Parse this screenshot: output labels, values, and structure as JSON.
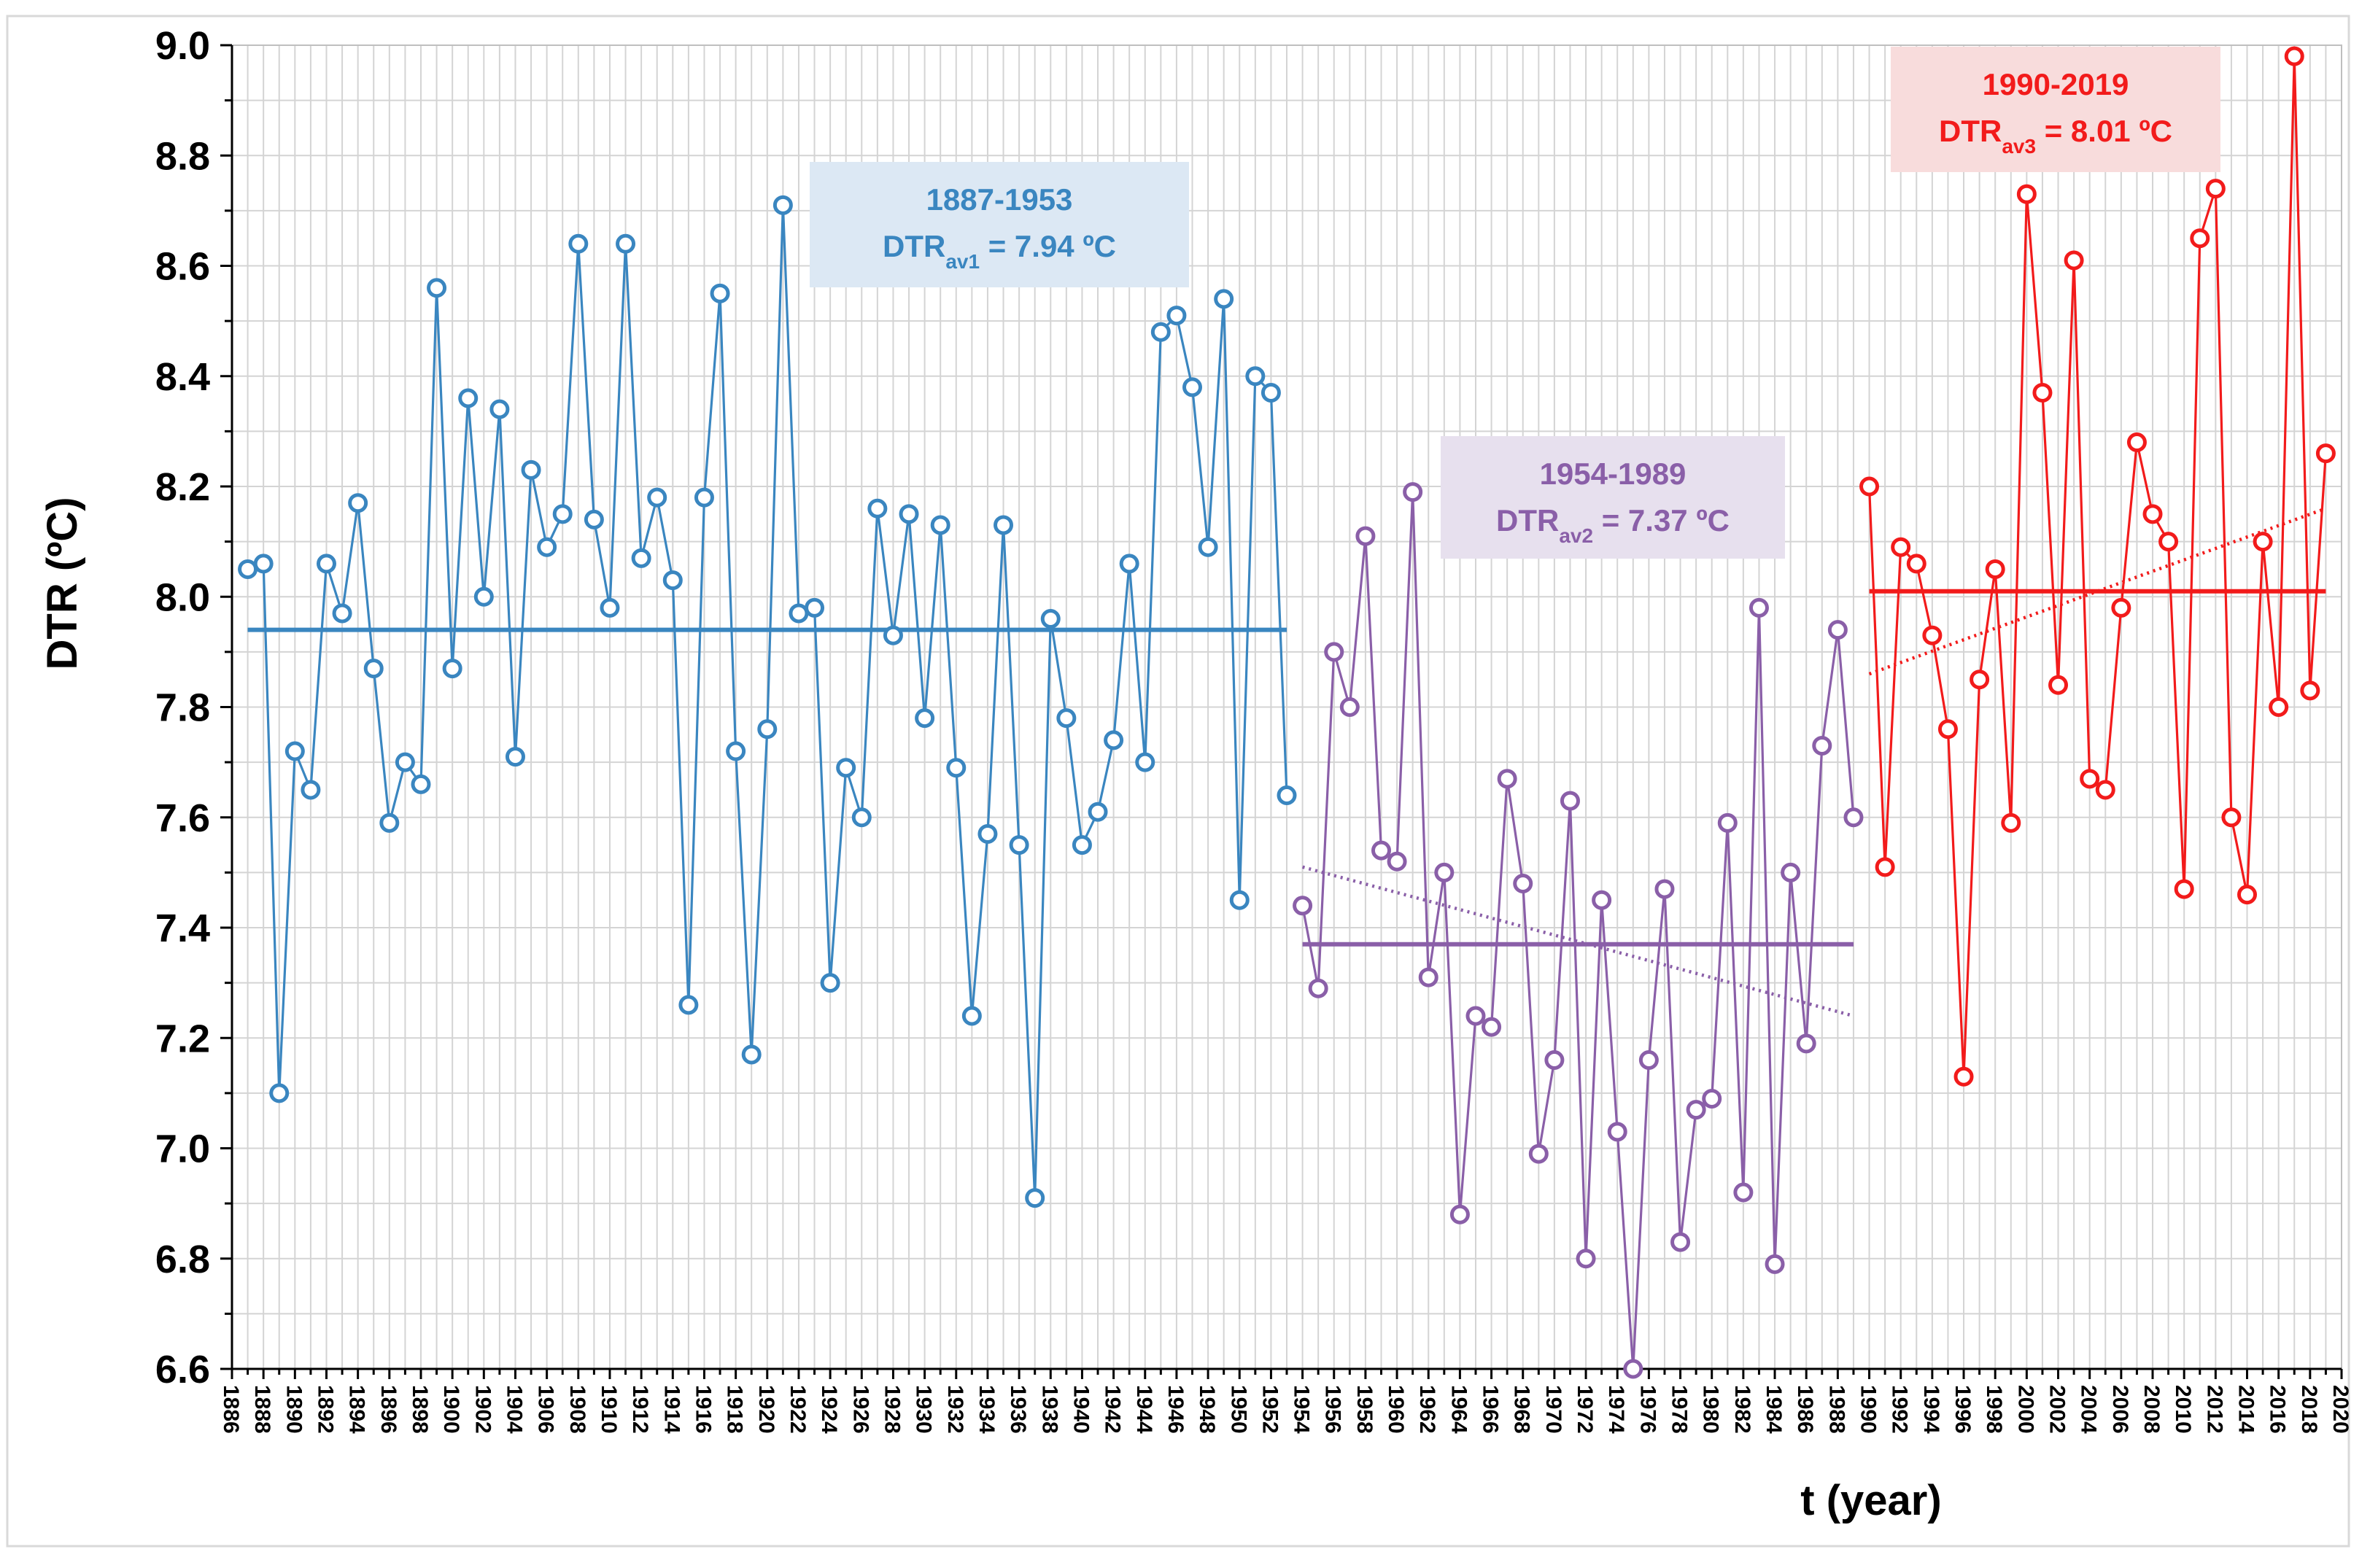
{
  "chart_data": {
    "type": "line",
    "ylabel": "DTR (ºC)",
    "xlabel": "t (year)",
    "ylim": [
      6.6,
      9.0
    ],
    "xlim": [
      1886,
      2020
    ],
    "y_ticks": [
      "6.6",
      "6.8",
      "7.0",
      "7.2",
      "7.4",
      "7.6",
      "7.8",
      "8.0",
      "8.2",
      "8.4",
      "8.6",
      "8.8",
      "9.0"
    ],
    "x_tick_start": 1886,
    "x_tick_end": 2020,
    "x_tick_step": 2,
    "grid": true,
    "series": [
      {
        "name": "1887-1953",
        "color": "#3a86c0",
        "x_start": 1887,
        "values": [
          8.05,
          8.06,
          7.1,
          7.72,
          7.65,
          8.06,
          7.97,
          8.17,
          7.87,
          7.59,
          7.7,
          7.66,
          8.56,
          7.87,
          8.36,
          8.0,
          8.34,
          7.71,
          8.23,
          8.09,
          8.15,
          8.64,
          8.14,
          7.98,
          8.64,
          8.07,
          8.18,
          8.03,
          7.26,
          8.18,
          8.55,
          7.72,
          7.17,
          7.76,
          8.71,
          7.97,
          7.98,
          7.3,
          7.69,
          7.6,
          8.16,
          7.93,
          8.15,
          7.78,
          8.13,
          7.69,
          7.24,
          7.57,
          8.13,
          7.55,
          6.91,
          7.96,
          7.78,
          7.55,
          7.61,
          7.74,
          8.06,
          7.7,
          8.48,
          8.51,
          8.38,
          8.09,
          8.54,
          7.45,
          8.4,
          8.37,
          7.64
        ],
        "mean": 7.94,
        "trend_start": 7.94,
        "trend_end": 7.94,
        "box_title": "1887-1953",
        "box_text": "DTR",
        "box_sub": "av1",
        "box_value": " = 7.94 ºC",
        "box_fill": "#dce8f4",
        "box_text_color": "#3a86c0"
      },
      {
        "name": "1954-1989",
        "color": "#8a5fa8",
        "x_start": 1954,
        "values": [
          7.44,
          7.29,
          7.9,
          7.8,
          8.11,
          7.54,
          7.52,
          8.19,
          7.31,
          7.5,
          6.88,
          7.24,
          7.22,
          7.67,
          7.48,
          6.99,
          7.16,
          7.63,
          6.8,
          7.45,
          7.03,
          6.6,
          7.16,
          7.47,
          6.83,
          7.07,
          7.09,
          7.59,
          6.92,
          7.98,
          6.79,
          7.5,
          7.19,
          7.73,
          7.94,
          7.6
        ],
        "mean": 7.37,
        "trend_start": 7.51,
        "trend_end": 7.24,
        "box_title": "1954-1989",
        "box_text": "DTR",
        "box_sub": "av2",
        "box_value": " = 7.37 ºC",
        "box_fill": "#e7e0ee",
        "box_text_color": "#8a5fa8"
      },
      {
        "name": "1990-2019",
        "color": "#f21b1b",
        "x_start": 1990,
        "values": [
          8.2,
          7.51,
          8.09,
          8.06,
          7.93,
          7.76,
          7.13,
          7.85,
          8.05,
          7.59,
          8.73,
          8.37,
          7.84,
          8.61,
          7.67,
          7.65,
          7.98,
          8.28,
          8.15,
          8.1,
          7.47,
          8.65,
          8.74,
          7.6,
          7.46,
          8.1,
          7.8,
          8.98,
          7.83,
          8.26
        ],
        "mean": 8.01,
        "trend_start": 7.86,
        "trend_end": 8.16,
        "box_title": "1990-2019",
        "box_text": "DTR",
        "box_sub": "av3",
        "box_value": " = 8.01 ºC",
        "box_fill": "#f8dcdc",
        "box_text_color": "#f21b1b"
      }
    ]
  }
}
